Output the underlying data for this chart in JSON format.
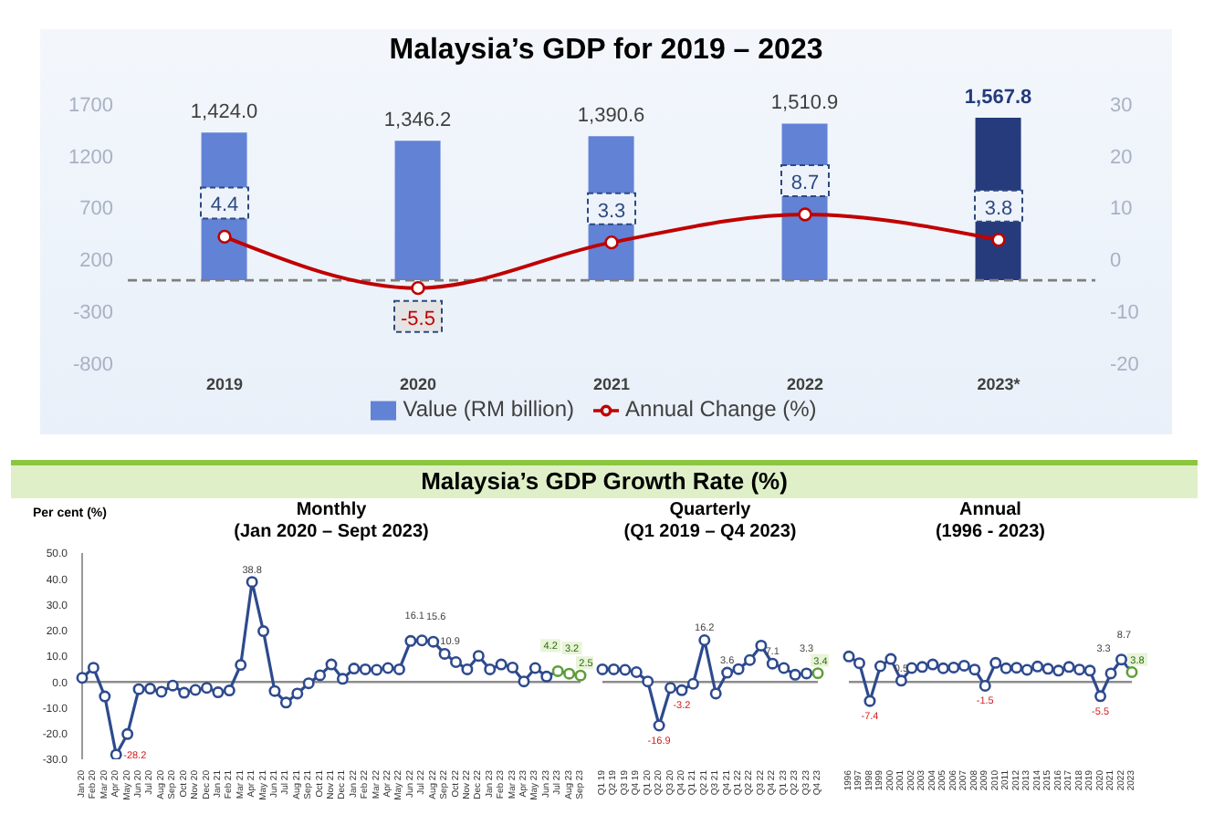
{
  "chart_data": [
    {
      "type": "bar",
      "title": "Malaysia’s GDP for 2019 – 2023",
      "categories": [
        "2019",
        "2020",
        "2021",
        "2022",
        "2023*"
      ],
      "series": [
        {
          "name": "Value (RM billion)",
          "type": "bar",
          "color": "#6282d6",
          "colors": [
            "#6282d6",
            "#6282d6",
            "#6282d6",
            "#6282d6",
            "#253b7c"
          ],
          "values": [
            1424.0,
            1346.2,
            1390.6,
            1510.9,
            1567.8
          ],
          "value_labels": [
            "1,424.0",
            "1,346.2",
            "1,390.6",
            "1,510.9",
            "1,567.8"
          ]
        },
        {
          "name": "Annual Change (%)",
          "type": "line",
          "axis": "y2",
          "color": "#c00000",
          "values": [
            4.4,
            -5.5,
            3.3,
            8.7,
            3.8
          ]
        }
      ],
      "ylim": [
        -800,
        1700
      ],
      "yticks": [
        -800,
        -300,
        200,
        700,
        1200,
        1700
      ],
      "y2lim": [
        -20,
        30
      ],
      "y2ticks": [
        -20,
        -10,
        0,
        10,
        20,
        30
      ],
      "data_labels": true,
      "legend": "bottom",
      "marker": "circle",
      "ref_lines": [
        {
          "axis": "y",
          "value": 0,
          "color": "#7f7f7f",
          "line_style": "dashed"
        }
      ]
    },
    {
      "type": "line",
      "title": "Monthly",
      "subtitle": "(Jan 2020 – Sept 2023)",
      "ylabel": "Per cent (%)",
      "annotations": [
        "Malaysia’s GDP Growth Rate (%)"
      ],
      "categories": [
        "Jan 20",
        "Feb 20",
        "Mar 20",
        "Apr 20",
        "May 20",
        "Jun 20",
        "Jul 20",
        "Aug 20",
        "Sep 20",
        "Oct 20",
        "Nov 20",
        "Dec 20",
        "Jan 21",
        "Feb 21",
        "Mar 21",
        "Apr 21",
        "May 21",
        "Jun 21",
        "Jul 21",
        "Aug 21",
        "Sep 21",
        "Oct 21",
        "Nov 21",
        "Dec 21",
        "Jan 22",
        "Feb 22",
        "Mar 22",
        "Apr 22",
        "May 22",
        "Jun 22",
        "Jul 22",
        "Aug 22",
        "Sep 22",
        "Oct 22",
        "Nov 22",
        "Dec 22",
        "Jan 23",
        "Feb 23",
        "Mar 23",
        "Apr 23",
        "May 23",
        "Jun 23",
        "Jul 23",
        "Aug 23",
        "Sep 23"
      ],
      "series": [
        {
          "color": "#2e4a8e",
          "colors": [
            "#2e4a8e",
            "#2e4a8e",
            "#2e4a8e",
            "#2e4a8e",
            "#2e4a8e",
            "#2e4a8e",
            "#2e4a8e",
            "#2e4a8e",
            "#2e4a8e",
            "#2e4a8e",
            "#2e4a8e",
            "#2e4a8e",
            "#2e4a8e",
            "#2e4a8e",
            "#2e4a8e",
            "#2e4a8e",
            "#2e4a8e",
            "#2e4a8e",
            "#2e4a8e",
            "#2e4a8e",
            "#2e4a8e",
            "#2e4a8e",
            "#2e4a8e",
            "#2e4a8e",
            "#2e4a8e",
            "#2e4a8e",
            "#2e4a8e",
            "#2e4a8e",
            "#2e4a8e",
            "#2e4a8e",
            "#2e4a8e",
            "#2e4a8e",
            "#2e4a8e",
            "#2e4a8e",
            "#2e4a8e",
            "#2e4a8e",
            "#2e4a8e",
            "#2e4a8e",
            "#2e4a8e",
            "#2e4a8e",
            "#2e4a8e",
            "#2e4a8e",
            "#5f9e3a",
            "#5f9e3a",
            "#5f9e3a"
          ],
          "values": [
            1.6,
            5.5,
            -5.6,
            -28.2,
            -20.2,
            -2.8,
            -2.6,
            -3.8,
            -1.4,
            -4.2,
            -3.1,
            -2.3,
            -4.0,
            -3.3,
            6.6,
            38.8,
            19.7,
            -3.5,
            -8.0,
            -4.5,
            -0.5,
            2.6,
            6.8,
            1.2,
            5.2,
            4.9,
            4.7,
            5.4,
            4.9,
            15.9,
            16.1,
            15.6,
            10.9,
            7.7,
            4.9,
            10.1,
            4.9,
            6.8,
            5.6,
            0.2,
            5.4,
            2.1,
            4.2,
            3.2,
            2.5
          ],
          "value_labels": [
            null,
            null,
            null,
            "-28.2",
            null,
            null,
            null,
            null,
            null,
            null,
            null,
            null,
            null,
            null,
            null,
            "38.8",
            null,
            null,
            null,
            null,
            null,
            null,
            null,
            null,
            null,
            null,
            null,
            null,
            null,
            null,
            "16.1",
            "15.6",
            "10.9",
            null,
            null,
            null,
            null,
            null,
            null,
            null,
            null,
            null,
            "4.2",
            "3.2",
            "2.5"
          ]
        }
      ],
      "ylim": [
        -30,
        50
      ],
      "yticks": [
        {
          "value": -30,
          "label": "-30.0"
        },
        {
          "value": -20,
          "label": "-20.0"
        },
        {
          "value": -10,
          "label": "-10.0"
        },
        {
          "value": 0,
          "label": "0.0"
        },
        {
          "value": 10,
          "label": "10.0"
        },
        {
          "value": 20,
          "label": "20.0"
        },
        {
          "value": 30,
          "label": "30.0"
        },
        {
          "value": 40,
          "label": "40.0"
        },
        {
          "value": 50,
          "label": "50.0"
        }
      ],
      "marker": "circle",
      "ref_lines": [
        {
          "axis": "y",
          "value": 0,
          "color": "#8c8c8c"
        }
      ]
    },
    {
      "type": "line",
      "title": "Quarterly",
      "subtitle": "(Q1 2019 – Q4 2023)",
      "categories": [
        "Q1 19",
        "Q2 19",
        "Q3 19",
        "Q4 19",
        "Q1 20",
        "Q2 20",
        "Q3 20",
        "Q4 20",
        "Q1 21",
        "Q2 21",
        "Q3 21",
        "Q4 21",
        "Q1 22",
        "Q2 22",
        "Q3 22",
        "Q4 22",
        "Q1 23",
        "Q2 23",
        "Q3 23",
        "Q4 23"
      ],
      "series": [
        {
          "color": "#2e4a8e",
          "colors": [
            "#2e4a8e",
            "#2e4a8e",
            "#2e4a8e",
            "#2e4a8e",
            "#2e4a8e",
            "#2e4a8e",
            "#2e4a8e",
            "#2e4a8e",
            "#2e4a8e",
            "#2e4a8e",
            "#2e4a8e",
            "#2e4a8e",
            "#2e4a8e",
            "#2e4a8e",
            "#2e4a8e",
            "#2e4a8e",
            "#2e4a8e",
            "#2e4a8e",
            "#2e4a8e",
            "#5f9e3a"
          ],
          "values": [
            4.9,
            4.9,
            4.7,
            3.8,
            0.2,
            -16.9,
            -2.3,
            -3.2,
            -0.7,
            16.2,
            -4.5,
            3.6,
            5.0,
            8.5,
            14.1,
            7.1,
            5.4,
            2.8,
            3.3,
            3.4
          ],
          "value_labels": [
            null,
            null,
            null,
            null,
            null,
            "-16.9",
            null,
            "-3.2",
            null,
            "16.2",
            null,
            "3.6",
            null,
            null,
            null,
            "7.1",
            null,
            null,
            "3.3",
            "3.4"
          ]
        }
      ],
      "ylim": [
        -30,
        50
      ],
      "tick_labels": "x",
      "marker": "circle",
      "ref_lines": [
        {
          "axis": "y",
          "value": 0,
          "color": "#8c8c8c"
        }
      ]
    },
    {
      "type": "line",
      "title": "Annual",
      "subtitle": "(1996 - 2023)",
      "categories": [
        "1996",
        "1997",
        "1998",
        "1999",
        "2000",
        "2001",
        "2002",
        "2003",
        "2004",
        "2005",
        "2006",
        "2007",
        "2008",
        "2009",
        "2010",
        "2011",
        "2012",
        "2013",
        "2014",
        "2015",
        "2016",
        "2017",
        "2018",
        "2019",
        "2020",
        "2021",
        "2022",
        "2023"
      ],
      "series": [
        {
          "color": "#2e4a8e",
          "colors": [
            "#2e4a8e",
            "#2e4a8e",
            "#2e4a8e",
            "#2e4a8e",
            "#2e4a8e",
            "#2e4a8e",
            "#2e4a8e",
            "#2e4a8e",
            "#2e4a8e",
            "#2e4a8e",
            "#2e4a8e",
            "#2e4a8e",
            "#2e4a8e",
            "#2e4a8e",
            "#2e4a8e",
            "#2e4a8e",
            "#2e4a8e",
            "#2e4a8e",
            "#2e4a8e",
            "#2e4a8e",
            "#2e4a8e",
            "#2e4a8e",
            "#2e4a8e",
            "#2e4a8e",
            "#2e4a8e",
            "#2e4a8e",
            "#2e4a8e",
            "#5f9e3a"
          ],
          "values": [
            9.9,
            7.3,
            -7.4,
            6.1,
            8.9,
            0.5,
            5.4,
            5.8,
            6.8,
            5.3,
            5.6,
            6.3,
            4.8,
            -1.5,
            7.4,
            5.3,
            5.5,
            4.7,
            6.0,
            5.1,
            4.4,
            5.8,
            4.8,
            4.4,
            -5.5,
            3.3,
            8.7,
            3.8
          ],
          "value_labels": [
            null,
            null,
            "-7.4",
            null,
            null,
            "0.5",
            null,
            null,
            null,
            null,
            null,
            null,
            null,
            "-1.5",
            null,
            null,
            null,
            null,
            null,
            null,
            null,
            null,
            null,
            null,
            "-5.5",
            "3.3",
            "8.7",
            "3.8"
          ]
        }
      ],
      "ylim": [
        -30,
        50
      ],
      "tick_labels": "x",
      "marker": "circle",
      "ref_lines": [
        {
          "axis": "y",
          "value": 0,
          "color": "#8c8c8c"
        }
      ]
    }
  ]
}
